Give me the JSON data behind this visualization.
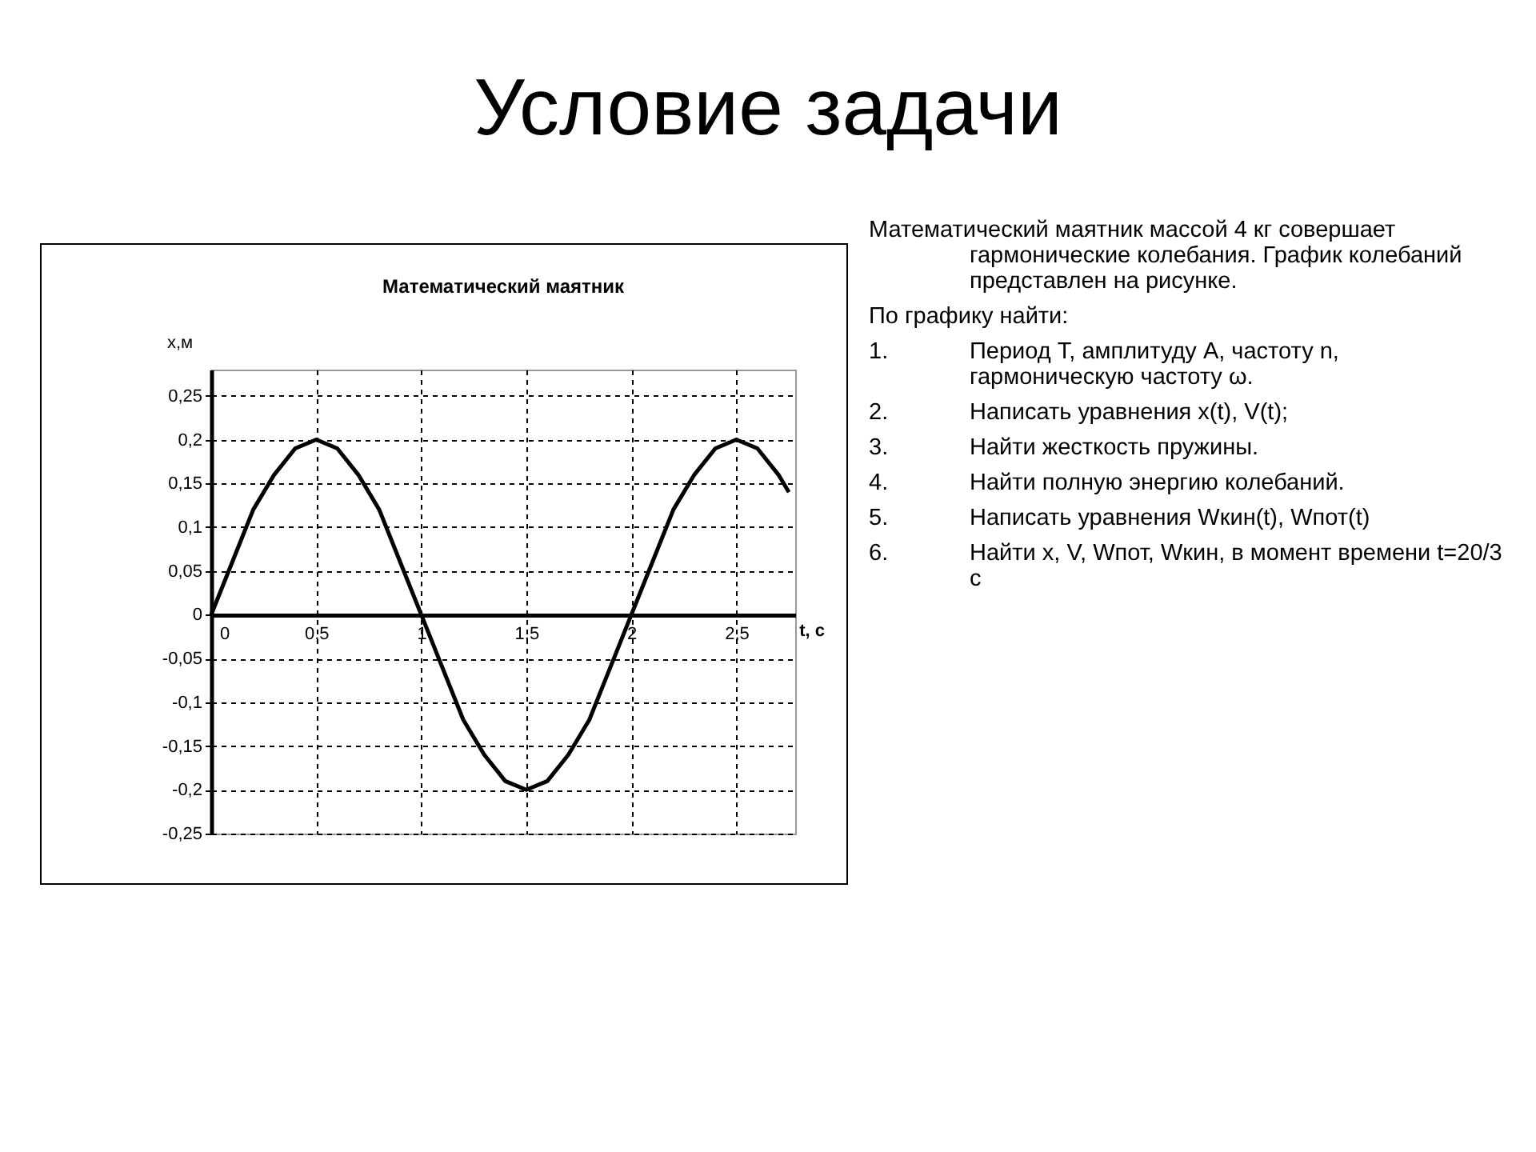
{
  "chart_data": {
    "type": "line",
    "title": "Условие задачи",
    "subtitle": "Математический маятник",
    "xlabel": "t, с",
    "ylabel": "x,м",
    "x": [
      0,
      0.1,
      0.2,
      0.3,
      0.4,
      0.5,
      0.6,
      0.7,
      0.8,
      0.9,
      1,
      1.1,
      1.2,
      1.3,
      1.4,
      1.5,
      1.6,
      1.7,
      1.8,
      1.9,
      2,
      2.1,
      2.2,
      2.3,
      2.4,
      2.5,
      2.6,
      2.7,
      2.75
    ],
    "series": [
      {
        "color": "#000000",
        "values": [
          0,
          0.06,
          0.12,
          0.16,
          0.19,
          0.2,
          0.19,
          0.16,
          0.12,
          0.06,
          0,
          -0.06,
          -0.12,
          -0.16,
          -0.19,
          -0.2,
          -0.19,
          -0.16,
          -0.12,
          -0.06,
          0,
          0.06,
          0.12,
          0.16,
          0.19,
          0.2,
          0.19,
          0.16,
          0.14
        ]
      }
    ],
    "xlim": [
      0,
      2.78
    ],
    "ylim": [
      -0.25,
      0.28
    ],
    "xticks": [
      0,
      {
        "value": 0.5,
        "label": "0,5"
      },
      1,
      {
        "value": 1.5,
        "label": "1,5"
      },
      2,
      {
        "value": 2.5,
        "label": "2,5"
      }
    ],
    "yticks": [
      {
        "value": -0.25,
        "label": "-0,25"
      },
      {
        "value": -0.2,
        "label": "-0,2"
      },
      {
        "value": -0.15,
        "label": "-0,15"
      },
      {
        "value": -0.1,
        "label": "-0,1"
      },
      {
        "value": -0.05,
        "label": "-0,05"
      },
      0,
      {
        "value": 0.05,
        "label": "0,05"
      },
      {
        "value": 0.1,
        "label": "0,1"
      },
      {
        "value": 0.15,
        "label": "0,15"
      },
      {
        "value": 0.2,
        "label": "0,2"
      },
      {
        "value": 0.25,
        "label": "0,25"
      }
    ],
    "grid": true,
    "marker": "none",
    "annotations": [
      "Математический маятник массой 4 кг совершает гармонические колебания. График колебаний представлен на рисунке.",
      "По графику найти:",
      "1. Период T, амплитуду A, частоту n, гармоническую частоту ω.",
      "2. Написать уравнения x(t), V(t);",
      "3. Найти жесткость пружины.",
      "4. Найти полную энергию колебаний.",
      "5. Написать уравнения Wкин(t), Wпот(t)",
      "6. Найти x, V, Wпот, Wкин, в момент времени t=20/3 с"
    ]
  }
}
